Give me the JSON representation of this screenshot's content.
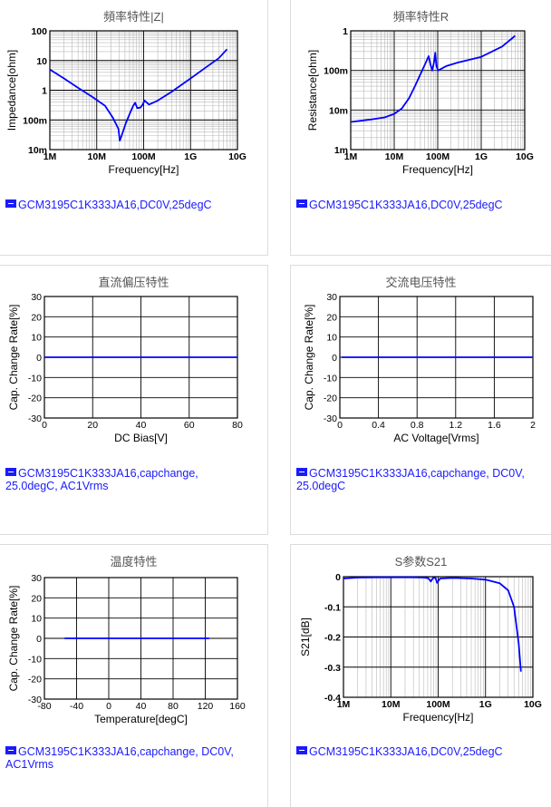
{
  "chart_data": [
    {
      "id": "c1",
      "type": "line",
      "title": "頻率特性|Z|",
      "xlabel": "Frequency[Hz]",
      "ylabel": "Impedance[ohm]",
      "xscale": "log",
      "yscale": "log",
      "xlim": [
        1000000.0,
        10000000000.0
      ],
      "ylim": [
        0.01,
        100
      ],
      "xticks": [
        1000000.0,
        10000000.0,
        100000000.0,
        1000000000.0,
        10000000000.0
      ],
      "xtick_labels": [
        "1M",
        "10M",
        "100M",
        "1G",
        "10G"
      ],
      "yticks": [
        0.01,
        0.1,
        1,
        10,
        100
      ],
      "ytick_labels": [
        "10m",
        "100m",
        "1",
        "10",
        "100"
      ],
      "grid": true,
      "series": [
        {
          "x": [
            1000000.0,
            2000000.0,
            4000000.0,
            8000000.0,
            15000000.0,
            22000000.0,
            29000000.0,
            31000000.0,
            34000000.0,
            42000000.0,
            52000000.0,
            60000000.0,
            66000000.0,
            73000000.0,
            85000000.0,
            95000000.0,
            105000000.0,
            130000000.0,
            200000000.0,
            400000000.0,
            1000000000.0,
            2000000000.0,
            4000000000.0,
            6000000000.0
          ],
          "y": [
            5,
            2.5,
            1.2,
            0.6,
            0.3,
            0.12,
            0.05,
            0.02,
            0.03,
            0.08,
            0.18,
            0.3,
            0.38,
            0.25,
            0.26,
            0.32,
            0.45,
            0.33,
            0.45,
            0.9,
            2.5,
            5.5,
            12,
            24
          ]
        }
      ],
      "legend": "GCM3195C1K333JA16,DC0V,25degC",
      "color": "#0000ff"
    },
    {
      "id": "c2",
      "type": "line",
      "title": "頻率特性R",
      "xlabel": "Frequency[Hz]",
      "ylabel": "Resistance[ohm]",
      "xscale": "log",
      "yscale": "log",
      "xlim": [
        1000000.0,
        10000000000.0
      ],
      "ylim": [
        0.001,
        1
      ],
      "xticks": [
        1000000.0,
        10000000.0,
        100000000.0,
        1000000000.0,
        10000000000.0
      ],
      "xtick_labels": [
        "1M",
        "10M",
        "100M",
        "1G",
        "10G"
      ],
      "yticks": [
        0.001,
        0.01,
        0.1,
        1
      ],
      "ytick_labels": [
        "1m",
        "10m",
        "100m",
        "1"
      ],
      "grid": true,
      "series": [
        {
          "x": [
            1000000.0,
            3000000.0,
            6000000.0,
            10000000.0,
            15000000.0,
            22000000.0,
            30000000.0,
            40000000.0,
            52000000.0,
            62000000.0,
            68000000.0,
            75000000.0,
            83000000.0,
            88000000.0,
            93000000.0,
            102000000.0,
            120000000.0,
            160000000.0,
            300000000.0,
            1000000000.0,
            3000000000.0,
            6000000000.0
          ],
          "y": [
            0.005,
            0.0058,
            0.0065,
            0.008,
            0.011,
            0.02,
            0.04,
            0.08,
            0.15,
            0.23,
            0.14,
            0.1,
            0.17,
            0.28,
            0.13,
            0.1,
            0.11,
            0.13,
            0.16,
            0.22,
            0.4,
            0.75
          ]
        }
      ],
      "legend": "GCM3195C1K333JA16,DC0V,25degC",
      "color": "#0000ff"
    },
    {
      "id": "c3",
      "type": "line",
      "title": "直流偏压特性",
      "xlabel": "DC Bias[V]",
      "ylabel": "Cap. Change Rate[%]",
      "xscale": "linear",
      "yscale": "linear",
      "xlim": [
        0,
        80
      ],
      "ylim": [
        -30,
        30
      ],
      "xticks": [
        0,
        20,
        40,
        60,
        80
      ],
      "xtick_labels": [
        "0",
        "20",
        "40",
        "60",
        "80"
      ],
      "yticks": [
        -30,
        -20,
        -10,
        0,
        10,
        20,
        30
      ],
      "ytick_labels": [
        "-30",
        "-20",
        "-10",
        "0",
        "10",
        "20",
        "30"
      ],
      "grid": true,
      "series": [
        {
          "x": [
            0,
            20,
            40,
            60,
            80
          ],
          "y": [
            0,
            0,
            0,
            0,
            0
          ]
        }
      ],
      "legend": "GCM3195C1K333JA16,capchange, 25.0degC, AC1Vrms",
      "color": "#0000ff"
    },
    {
      "id": "c4",
      "type": "line",
      "title": "交流电压特性",
      "xlabel": "AC Voltage[Vrms]",
      "ylabel": "Cap. Change Rate[%]",
      "xscale": "linear",
      "yscale": "linear",
      "xlim": [
        0,
        2
      ],
      "ylim": [
        -30,
        30
      ],
      "xticks": [
        0,
        0.4,
        0.8,
        1.2,
        1.6,
        2
      ],
      "xtick_labels": [
        "0",
        "0.4",
        "0.8",
        "1.2",
        "1.6",
        "2"
      ],
      "yticks": [
        -30,
        -20,
        -10,
        0,
        10,
        20,
        30
      ],
      "ytick_labels": [
        "-30",
        "-20",
        "-10",
        "0",
        "10",
        "20",
        "30"
      ],
      "grid": true,
      "series": [
        {
          "x": [
            0.02,
            0.4,
            0.8,
            1.2,
            1.6,
            2
          ],
          "y": [
            0,
            0,
            0,
            0,
            0,
            0
          ]
        }
      ],
      "legend": "GCM3195C1K333JA16,capchange, DC0V, 25.0degC",
      "color": "#0000ff"
    },
    {
      "id": "c5",
      "type": "line",
      "title": "温度特性",
      "xlabel": "Temperature[degC]",
      "ylabel": "Cap. Change Rate[%]",
      "xscale": "linear",
      "yscale": "linear",
      "xlim": [
        -80,
        160
      ],
      "ylim": [
        -30,
        30
      ],
      "xticks": [
        -80,
        -40,
        0,
        40,
        80,
        120,
        160
      ],
      "xtick_labels": [
        "-80",
        "-40",
        "0",
        "40",
        "80",
        "120",
        "160"
      ],
      "yticks": [
        -30,
        -20,
        -10,
        0,
        10,
        20,
        30
      ],
      "ytick_labels": [
        "-30",
        "-20",
        "-10",
        "0",
        "10",
        "20",
        "30"
      ],
      "grid": true,
      "series": [
        {
          "x": [
            -55,
            -20,
            25,
            85,
            125
          ],
          "y": [
            0,
            0,
            0,
            0,
            0
          ]
        }
      ],
      "legend": "GCM3195C1K333JA16,capchange, DC0V, AC1Vrms",
      "color": "#0000ff"
    },
    {
      "id": "c6",
      "type": "line",
      "title": "S参数S21",
      "xlabel": "Frequency[Hz]",
      "ylabel": "S21[dB]",
      "xscale": "log",
      "yscale": "linear",
      "xlim": [
        1000000.0,
        10000000000.0
      ],
      "ylim": [
        -0.4,
        0
      ],
      "xticks": [
        1000000.0,
        10000000.0,
        100000000.0,
        1000000000.0,
        10000000000.0
      ],
      "xtick_labels": [
        "1M",
        "10M",
        "100M",
        "1G",
        "10G"
      ],
      "yticks": [
        -0.4,
        -0.3,
        -0.2,
        -0.1,
        0
      ],
      "ytick_labels": [
        "-0.4",
        "-0.3",
        "-0.2",
        "-0.1",
        "0"
      ],
      "grid": true,
      "series": [
        {
          "x": [
            1000000.0,
            2000000.0,
            5000000.0,
            10000000.0,
            30000000.0,
            50000000.0,
            62000000.0,
            70000000.0,
            78000000.0,
            88000000.0,
            95000000.0,
            110000000.0,
            200000000.0,
            500000000.0,
            1000000000.0,
            2000000000.0,
            3000000000.0,
            4000000000.0,
            5000000000.0,
            5600000000.0
          ],
          "y": [
            -0.006,
            -0.003,
            -0.002,
            -0.002,
            -0.002,
            -0.003,
            -0.005,
            -0.016,
            -0.004,
            -0.004,
            -0.02,
            -0.006,
            -0.004,
            -0.006,
            -0.01,
            -0.022,
            -0.045,
            -0.1,
            -0.22,
            -0.315
          ]
        }
      ],
      "legend": "GCM3195C1K333JA16,DC0V,25degC",
      "color": "#0000ff"
    }
  ]
}
